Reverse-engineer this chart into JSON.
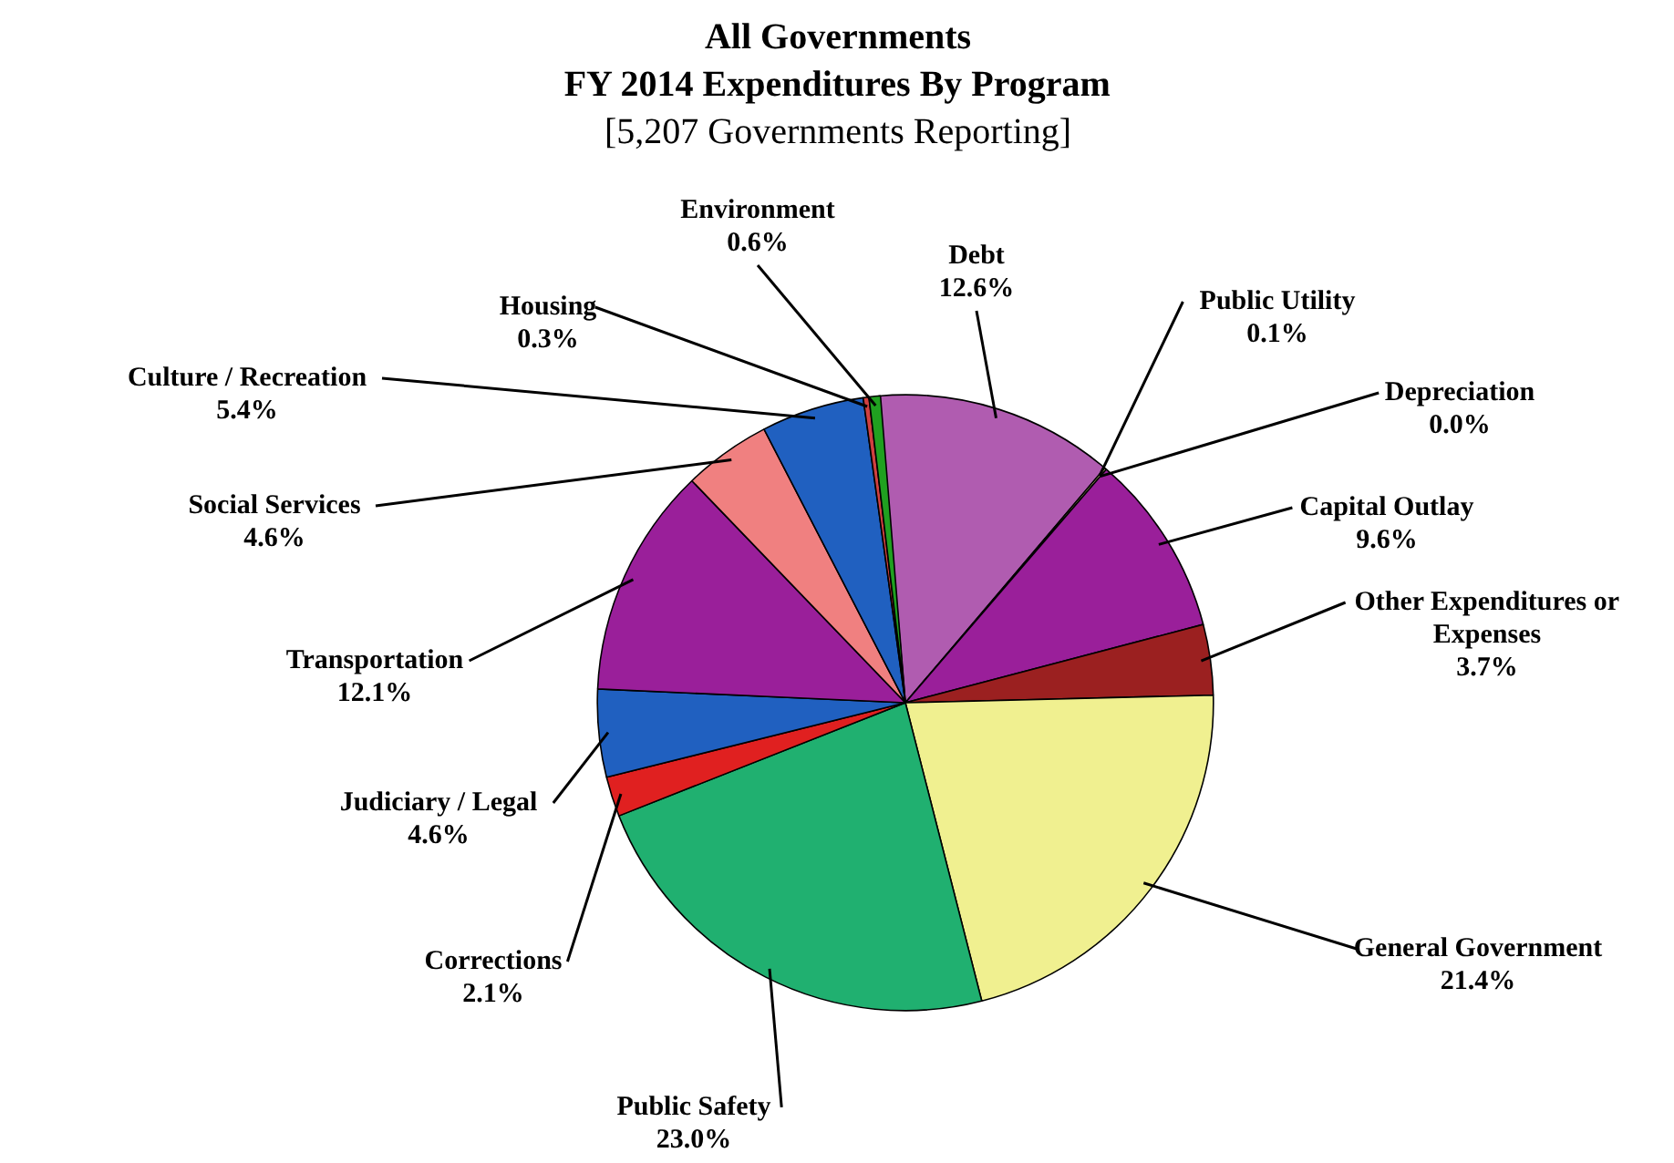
{
  "chart_data": {
    "type": "pie",
    "title": "All Governments\nFY 2014 Expenditures By Program",
    "subtitle": "[5,207 Governments Reporting]",
    "categories": [
      "Debt",
      "Public Utility",
      "Depreciation",
      "Capital Outlay",
      "Other Expenditures or\nExpenses",
      "General Government",
      "Public Safety",
      "Corrections",
      "Judiciary / Legal",
      "Transportation",
      "Social Services",
      "Culture / Recreation",
      "Housing",
      "Environment"
    ],
    "values": [
      12.6,
      0.1,
      0.0,
      9.6,
      3.7,
      21.4,
      23.0,
      2.1,
      4.6,
      12.1,
      4.6,
      5.4,
      0.3,
      0.6
    ],
    "value_labels": [
      "12.6%",
      "0.1%",
      "0.0%",
      "9.6%",
      "3.7%",
      "21.4%",
      "23.0%",
      "2.1%",
      "4.6%",
      "12.1%",
      "4.6%",
      "5.4%",
      "0.3%",
      "0.6%"
    ],
    "colors": [
      "#b05cb0",
      "#f0f090",
      "#20b070",
      "#9a1f9a",
      "#9b2020",
      "#f0f090",
      "#20b070",
      "#e02020",
      "#2060c0",
      "#9a1f9a",
      "#f08080",
      "#2060c0",
      "#d04040",
      "#20a020"
    ],
    "legend": false
  }
}
